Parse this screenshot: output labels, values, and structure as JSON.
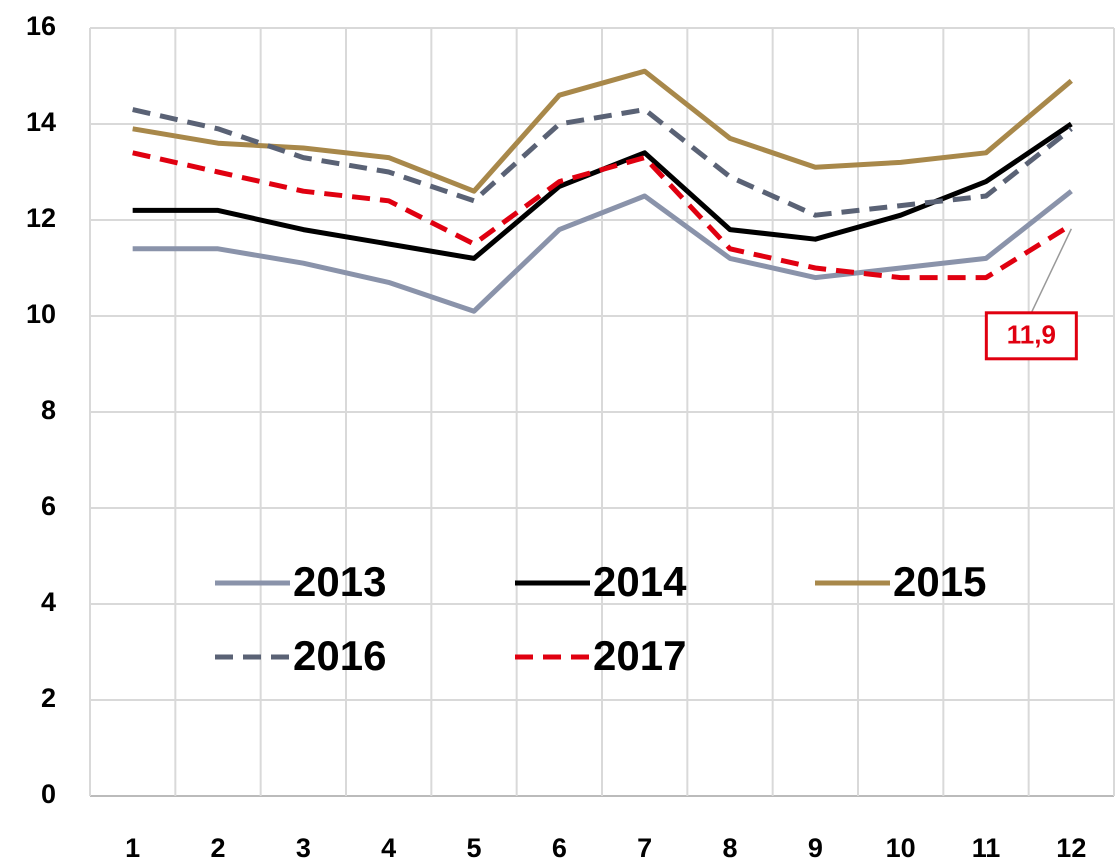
{
  "chart_data": {
    "type": "line",
    "categories": [
      "1",
      "2",
      "3",
      "4",
      "5",
      "6",
      "7",
      "8",
      "9",
      "10",
      "11",
      "12"
    ],
    "series": [
      {
        "name": "2013",
        "color": "#8a93aa",
        "dash": false,
        "values": [
          11.4,
          11.4,
          11.1,
          10.7,
          10.1,
          11.8,
          12.5,
          11.2,
          10.8,
          11.0,
          11.2,
          12.6
        ]
      },
      {
        "name": "2014",
        "color": "#000000",
        "dash": false,
        "values": [
          12.2,
          12.2,
          11.8,
          11.5,
          11.2,
          12.7,
          13.4,
          11.8,
          11.6,
          12.1,
          12.8,
          14.0
        ]
      },
      {
        "name": "2015",
        "color": "#a8884a",
        "dash": false,
        "values": [
          13.9,
          13.6,
          13.5,
          13.3,
          12.6,
          14.6,
          15.1,
          13.7,
          13.1,
          13.2,
          13.4,
          14.9
        ]
      },
      {
        "name": "2016",
        "color": "#5a6275",
        "dash": true,
        "values": [
          14.3,
          13.9,
          13.3,
          13.0,
          12.4,
          14.0,
          14.3,
          12.9,
          12.1,
          12.3,
          12.5,
          13.9
        ]
      },
      {
        "name": "2017",
        "color": "#e00010",
        "dash": true,
        "values": [
          13.4,
          13.0,
          12.6,
          12.4,
          11.5,
          12.8,
          13.3,
          11.4,
          11.0,
          10.8,
          10.8,
          11.9
        ],
        "value_labels": [
          null,
          null,
          null,
          null,
          null,
          null,
          null,
          null,
          null,
          null,
          null,
          "11,9"
        ]
      }
    ],
    "ylim": [
      0,
      16
    ],
    "yticks": [
      0,
      2,
      4,
      6,
      8,
      10,
      12,
      14,
      16
    ],
    "grid": true
  }
}
